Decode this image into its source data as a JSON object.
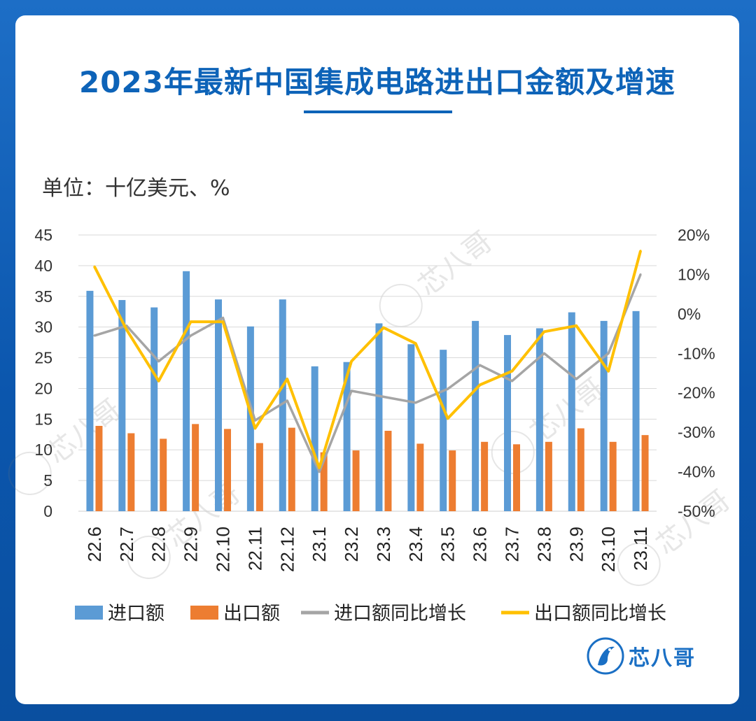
{
  "title": "2023年最新中国集成电路进出口金额及增速",
  "unit_label": "单位：十亿美元、%",
  "brand": "芯八哥",
  "watermark": "芯八哥",
  "colors": {
    "import": "#5b9bd5",
    "export": "#ed7d31",
    "import_yoy": "#a5a5a5",
    "export_yoy": "#ffc000",
    "title": "#0d63b8",
    "background": "#0b56ad"
  },
  "chart_data": {
    "type": "bar",
    "title": "2023年最新中国集成电路进出口金额及增速",
    "categories": [
      "22.6",
      "22.7",
      "22.8",
      "22.9",
      "22.10",
      "22.11",
      "22.12",
      "23.1",
      "23.2",
      "23.3",
      "23.4",
      "23.5",
      "23.6",
      "23.7",
      "23.8",
      "23.9",
      "23.10",
      "23.11"
    ],
    "y_left": {
      "min": 0,
      "max": 45,
      "step": 5,
      "ticks": [
        "0",
        "5",
        "10",
        "15",
        "20",
        "25",
        "30",
        "35",
        "40",
        "45"
      ]
    },
    "y_right": {
      "min": -50,
      "max": 20,
      "step": 10,
      "ticks": [
        "-50%",
        "-40%",
        "-30%",
        "-20%",
        "-10%",
        "0%",
        "10%",
        "20%"
      ]
    },
    "series": [
      {
        "name": "进口额",
        "type": "bar",
        "axis": "left",
        "values": [
          35.9,
          34.4,
          33.2,
          39.1,
          34.5,
          30.1,
          34.5,
          23.6,
          24.3,
          30.6,
          27.2,
          26.3,
          31.0,
          28.7,
          29.8,
          32.4,
          31.0,
          32.6
        ]
      },
      {
        "name": "出口额",
        "type": "bar",
        "axis": "left",
        "values": [
          13.9,
          12.7,
          11.8,
          14.2,
          13.4,
          11.1,
          13.6,
          9.6,
          9.9,
          13.1,
          11.0,
          9.9,
          11.3,
          10.9,
          11.3,
          13.5,
          11.3,
          12.4
        ]
      },
      {
        "name": "进口额同比增长",
        "type": "line",
        "axis": "right",
        "values": [
          -5.5,
          -3.0,
          -12.0,
          -5.5,
          -1.0,
          -27.0,
          -22.0,
          -40.0,
          -19.5,
          -21.0,
          -22.5,
          -19.0,
          -13.0,
          -17.0,
          -10.0,
          -16.5,
          -10.0,
          10.0
        ]
      },
      {
        "name": "出口额同比增长",
        "type": "line",
        "axis": "right",
        "values": [
          12.0,
          -4.0,
          -17.0,
          -2.0,
          -2.0,
          -29.0,
          -16.5,
          -39.0,
          -12.0,
          -3.5,
          -7.5,
          -26.5,
          -18.0,
          -14.5,
          -4.5,
          -3.0,
          -14.5,
          16.0
        ]
      }
    ],
    "legend_position": "bottom",
    "grid": true
  }
}
